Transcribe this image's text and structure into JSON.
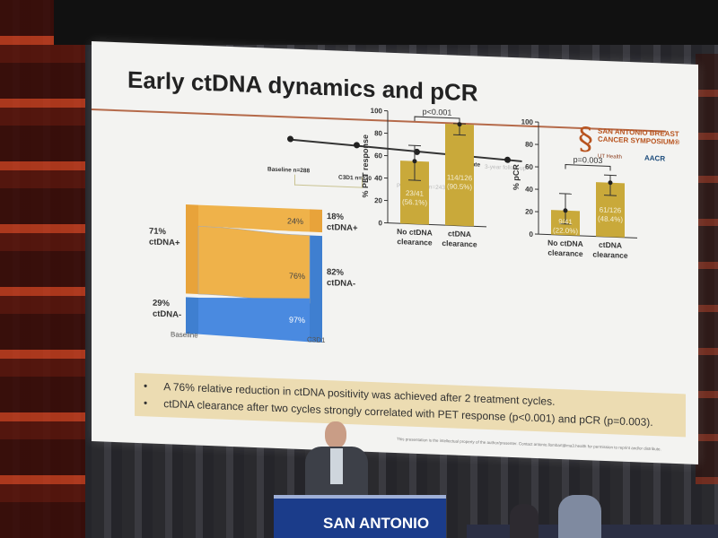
{
  "slide": {
    "title": "Early ctDNA dynamics and pCR",
    "logo": {
      "text": "SAN ANTONIO BREAST CANCER SYMPOSIUM®",
      "ut": "UT Health",
      "aacr": "AACR"
    },
    "timeline": [
      {
        "label": "Baseline n=288"
      },
      {
        "label": "C3D1 n=270"
      },
      {
        "label": "Pre-surgery n=243"
      },
      {
        "label": "pCR rate"
      },
      {
        "label": "3-year follow-up"
      }
    ],
    "bullets": [
      "A 76% relative reduction in ctDNA positivity was achieved after 2 treatment cycles.",
      "ctDNA clearance after two cycles strongly correlated with PET response (p<0.001) and pCR (p=0.003)."
    ],
    "footer": "This presentation is the intellectual property of the author/presenter. Contact antonio.llombart@ma3.health for permission to reprint and/or distribute."
  },
  "podium": {
    "text": "SAN ANTONIO"
  },
  "chart_data": [
    {
      "type": "sankey",
      "left_axis": "Baseline",
      "right_axis": "C3D1",
      "left_nodes": [
        {
          "label": "71%\nctDNA+",
          "value": 71,
          "color": "#e8a33a"
        },
        {
          "label": "29%\nctDNA-",
          "value": 29,
          "color": "#3f7fd0"
        }
      ],
      "right_nodes": [
        {
          "label": "18%\nctDNA+",
          "value": 18,
          "color": "#e8a33a"
        },
        {
          "label": "82%\nctDNA-",
          "value": 82,
          "color": "#3f7fd0"
        }
      ],
      "flow_labels": [
        "24%",
        "76%",
        "97%"
      ]
    },
    {
      "type": "bar",
      "ylabel": "% PET response",
      "ylim": [
        0,
        100
      ],
      "yticks": [
        0,
        20,
        40,
        60,
        80,
        100
      ],
      "categories": [
        "No ctDNA clearance",
        "ctDNA clearance"
      ],
      "values": [
        56.1,
        90.5
      ],
      "bar_labels": [
        "23/41\n(56.1%)",
        "114/126\n(90.5%)"
      ],
      "error_low": [
        39,
        81
      ],
      "error_high": [
        70,
        91
      ],
      "annotation": "p<0.001",
      "color": "#c9a93a"
    },
    {
      "type": "bar",
      "ylabel": "% pCR",
      "ylim": [
        0,
        100
      ],
      "yticks": [
        0,
        20,
        40,
        60,
        80,
        100
      ],
      "categories": [
        "No ctDNA clearance",
        "ctDNA clearance"
      ],
      "values": [
        22.0,
        48.4
      ],
      "bar_labels": [
        "9/41\n(22.0%)",
        "61/126\n(48.4%)"
      ],
      "error_low": [
        10,
        37
      ],
      "error_high": [
        37,
        55
      ],
      "annotation": "p=0.003",
      "color": "#c9a93a"
    }
  ]
}
